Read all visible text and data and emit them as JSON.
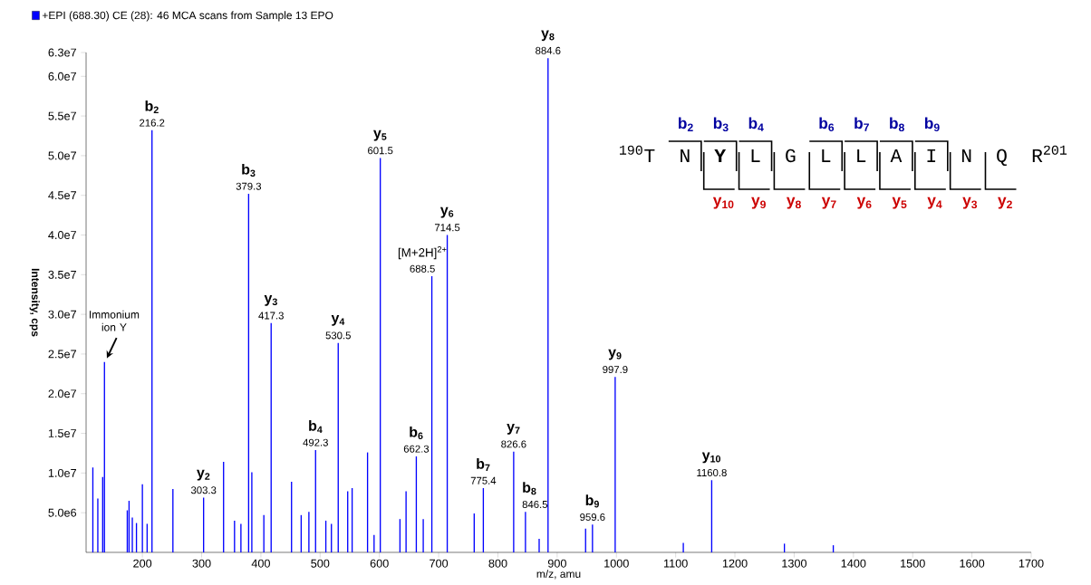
{
  "chart_data": {
    "type": "bar",
    "xlabel": "m/z, amu",
    "ylabel": "Intensity, cps",
    "legend": "top left",
    "xlim": [
      105,
      1700
    ],
    "ylim": [
      0,
      63000000
    ],
    "xticks": [
      200,
      300,
      400,
      500,
      600,
      700,
      800,
      900,
      1000,
      1100,
      1200,
      1300,
      1400,
      1500,
      1600,
      1700
    ],
    "yticks": [
      {
        "value": 5000000,
        "label": "5.0e6"
      },
      {
        "value": 10000000,
        "label": "1.0e7"
      },
      {
        "value": 15000000,
        "label": "1.5e7"
      },
      {
        "value": 20000000,
        "label": "2.0e7"
      },
      {
        "value": 25000000,
        "label": "2.5e7"
      },
      {
        "value": 30000000,
        "label": "3.0e7"
      },
      {
        "value": 35000000,
        "label": "3.5e7"
      },
      {
        "value": 40000000,
        "label": "4.0e7"
      },
      {
        "value": 45000000,
        "label": "4.5e7"
      },
      {
        "value": 50000000,
        "label": "5.0e7"
      },
      {
        "value": 55000000,
        "label": "5.5e7"
      },
      {
        "value": 60000000,
        "label": "6.0e7"
      },
      {
        "value": 63000000,
        "label": "6.3e7"
      }
    ],
    "series": [
      {
        "name": "+EPI (688.30) CE (28): 46 MCA scans from Sample 13  EPO",
        "color": "#0000ff",
        "x": [
          116.4,
          124.8,
          133,
          136,
          174.5,
          177.5,
          183,
          190,
          200,
          208,
          216.2,
          251.5,
          303.3,
          337,
          355.5,
          366.3,
          379.3,
          384.7,
          405,
          417.3,
          451.7,
          468,
          481,
          492.3,
          509.6,
          519,
          530.5,
          546.5,
          554,
          580,
          591,
          601.5,
          634.7,
          645,
          662.3,
          674,
          688.5,
          714.5,
          760,
          775.4,
          826.6,
          846.5,
          869.6,
          884.6,
          948,
          959.6,
          997.9,
          1112.9,
          1160.8,
          1283.5,
          1366
        ],
        "values": [
          10700000,
          6800000,
          9500000,
          24000000,
          5300000,
          6500000,
          4400000,
          3700000,
          8600000,
          3600000,
          53200000,
          8000000,
          6900000,
          11400000,
          4000000,
          3600000,
          45200000,
          10100000,
          4700000,
          28900000,
          8900000,
          4700000,
          5100000,
          12900000,
          4000000,
          3600000,
          26400000,
          7700000,
          8100000,
          12600000,
          2200000,
          49700000,
          4200000,
          7700000,
          12100000,
          4200000,
          34800000,
          40000000,
          4900000,
          8100000,
          12700000,
          5100000,
          1700000,
          62300000,
          3000000,
          3500000,
          22100000,
          1200000,
          9100000,
          1100000,
          900000
        ]
      }
    ],
    "annotations": [
      {
        "text": "Immonium ion Y",
        "x": 136,
        "y": 24000000
      },
      {
        "text": "b$_{2}$",
        "x": 216.2,
        "y": 53200000
      },
      {
        "text": "216.2",
        "x": 216.2,
        "y": 53200000
      },
      {
        "text": "y$_{2}$",
        "x": 303.3,
        "y": 6900000
      },
      {
        "text": "303.3",
        "x": 303.3,
        "y": 6900000
      },
      {
        "text": "b$_{3}$",
        "x": 379.3,
        "y": 45200000
      },
      {
        "text": "379.3",
        "x": 379.3,
        "y": 45200000
      },
      {
        "text": "y$_{3}$",
        "x": 417.3,
        "y": 28900000
      },
      {
        "text": "417.3",
        "x": 417.3,
        "y": 28900000
      },
      {
        "text": "b$_{4}$",
        "x": 492.3,
        "y": 12900000
      },
      {
        "text": "492.3",
        "x": 492.3,
        "y": 12900000
      },
      {
        "text": "y$_{4}$",
        "x": 530.5,
        "y": 26400000
      },
      {
        "text": "530.5",
        "x": 530.5,
        "y": 26400000
      },
      {
        "text": "y$_{5}$",
        "x": 601.5,
        "y": 49700000
      },
      {
        "text": "601.5",
        "x": 601.5,
        "y": 49700000
      },
      {
        "text": "b$_{6}$",
        "x": 662.3,
        "y": 12100000
      },
      {
        "text": "662.3",
        "x": 662.3,
        "y": 12100000
      },
      {
        "text": "[M+2H]$^{2+}$",
        "x": 688.5,
        "y": 34800000
      },
      {
        "text": "688.5",
        "x": 688.5,
        "y": 34800000
      },
      {
        "text": "y$_{6}$",
        "x": 714.5,
        "y": 40000000
      },
      {
        "text": "714.5",
        "x": 714.5,
        "y": 40000000
      },
      {
        "text": "b$_{7}$",
        "x": 775.4,
        "y": 8100000
      },
      {
        "text": "775.4",
        "x": 775.4,
        "y": 8100000
      },
      {
        "text": "y$_{7}$",
        "x": 826.6,
        "y": 12700000
      },
      {
        "text": "826.6",
        "x": 826.6,
        "y": 12700000
      },
      {
        "text": "b$_{8}$",
        "x": 846.5,
        "y": 5100000
      },
      {
        "text": "846.5",
        "x": 846.5,
        "y": 5100000
      },
      {
        "text": "y$_{8}$",
        "x": 884.6,
        "y": 62300000
      },
      {
        "text": "884.6",
        "x": 884.6,
        "y": 62300000
      },
      {
        "text": "b$_{9}$",
        "x": 959.6,
        "y": 3500000
      },
      {
        "text": "959.6",
        "x": 959.6,
        "y": 3500000
      },
      {
        "text": "y$_{9}$",
        "x": 997.9,
        "y": 22100000
      },
      {
        "text": "997.9",
        "x": 997.9,
        "y": 22100000
      },
      {
        "text": "y$_{10}$",
        "x": 1160.8,
        "y": 9100000
      },
      {
        "text": "1160.8",
        "x": 1160.8,
        "y": 9100000
      },
      "$^{190}$T",
      "N",
      "**Y**",
      "L",
      "G",
      "L",
      "L",
      "A",
      "I",
      "N",
      "Q",
      "R$^{201}$",
      "b$_{2}$",
      "b$_{3}$",
      "b$_{4}$",
      "b$_{6}$",
      "b$_{7}$",
      "b$_{8}$",
      "b$_{9}$",
      "y$_{10}$",
      "y$_{9}$",
      "y$_{8}$",
      "y$_{7}$",
      "y$_{6}$",
      "y$_{5}$",
      "y$_{4}$",
      "y$_{3}$",
      "y$_{2}$"
    ]
  }
}
